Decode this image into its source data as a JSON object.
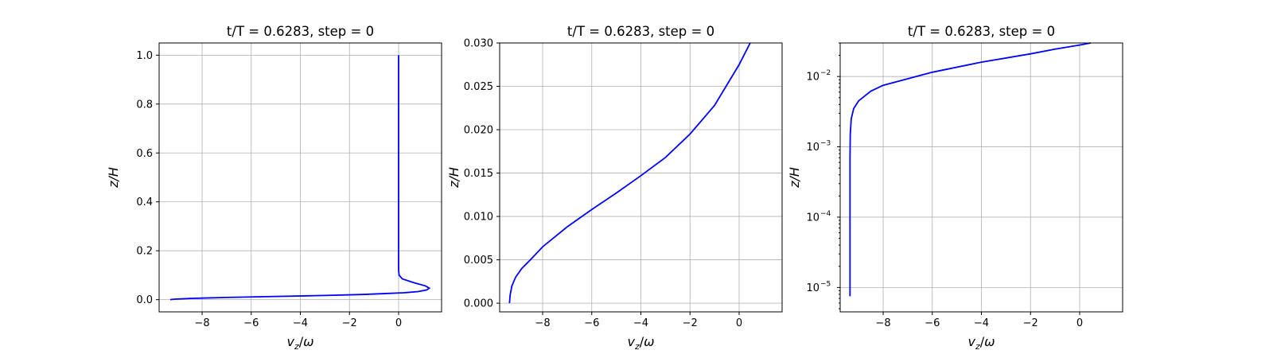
{
  "chart_data": [
    {
      "type": "line",
      "title": "t/T = 0.6283, step = 0",
      "xlabel": "v_z/ω",
      "ylabel": "z/H",
      "yscale": "linear",
      "xlim": [
        -9.75,
        1.75
      ],
      "ylim": [
        -0.05,
        1.05
      ],
      "xticks": [
        -8,
        -6,
        -4,
        -2,
        0
      ],
      "xtick_labels": [
        "−8",
        "−6",
        "−4",
        "−2",
        "0"
      ],
      "yticks": [
        0.0,
        0.2,
        0.4,
        0.6,
        0.8,
        1.0
      ],
      "ytick_labels": [
        "0.0",
        "0.2",
        "0.4",
        "0.6",
        "0.8",
        "1.0"
      ],
      "grid": true,
      "color": "#0000ff",
      "x": [
        -9.3,
        -9.1,
        -8.5,
        -7.0,
        -5.0,
        -3.0,
        -1.5,
        -0.5,
        0.2,
        0.8,
        1.15,
        1.25,
        1.1,
        0.6,
        0.15,
        0.02,
        0.0,
        0.0,
        0.0,
        0.0,
        0.0,
        0.0,
        0.0,
        0.0
      ],
      "y": [
        0.0,
        0.002,
        0.005,
        0.009,
        0.013,
        0.017,
        0.021,
        0.025,
        0.028,
        0.033,
        0.04,
        0.047,
        0.056,
        0.07,
        0.085,
        0.1,
        0.12,
        0.15,
        0.2,
        0.3,
        0.5,
        0.7,
        0.9,
        1.0
      ]
    },
    {
      "type": "line",
      "title": "t/T = 0.6283, step = 0",
      "xlabel": "v_z/ω",
      "ylabel": "z/H",
      "yscale": "linear",
      "xlim": [
        -9.75,
        1.75
      ],
      "ylim": [
        -0.001,
        0.03
      ],
      "xticks": [
        -8,
        -6,
        -4,
        -2,
        0
      ],
      "xtick_labels": [
        "−8",
        "−6",
        "−4",
        "−2",
        "0"
      ],
      "yticks": [
        0.0,
        0.005,
        0.01,
        0.015,
        0.02,
        0.025,
        0.03
      ],
      "ytick_labels": [
        "0.000",
        "0.005",
        "0.010",
        "0.015",
        "0.020",
        "0.025",
        "0.030"
      ],
      "grid": true,
      "color": "#0000ff",
      "x": [
        -9.35,
        -9.32,
        -9.25,
        -9.1,
        -8.85,
        -8.5,
        -8.0,
        -7.0,
        -6.0,
        -5.0,
        -4.0,
        -3.0,
        -2.0,
        -1.0,
        0.0,
        0.45
      ],
      "y": [
        0.0,
        0.001,
        0.002,
        0.003,
        0.004,
        0.005,
        0.0065,
        0.0088,
        0.0108,
        0.0127,
        0.0147,
        0.0168,
        0.0195,
        0.0228,
        0.0275,
        0.03
      ]
    },
    {
      "type": "line",
      "title": "t/T = 0.6283, step = 0",
      "xlabel": "v_z/ω",
      "ylabel": "z/H",
      "yscale": "log",
      "xlim": [
        -9.75,
        1.75
      ],
      "ylim": [
        4.5e-06,
        0.03
      ],
      "xticks": [
        -8,
        -6,
        -4,
        -2,
        0
      ],
      "xtick_labels": [
        "−8",
        "−6",
        "−4",
        "−2",
        "0"
      ],
      "yticks": [
        1e-05,
        0.0001,
        0.001,
        0.01
      ],
      "ytick_labels": [
        "10",
        "10",
        "10",
        "10"
      ],
      "ytick_exponents": [
        "−5",
        "−4",
        "−3",
        "−2"
      ],
      "grid": true,
      "color": "#0000ff",
      "x": [
        -9.35,
        -9.35,
        -9.35,
        -9.34,
        -9.3,
        -9.2,
        -9.0,
        -8.5,
        -8.0,
        -6.0,
        -4.0,
        -2.0,
        -1.0,
        0.0,
        0.45
      ],
      "y": [
        7.5e-06,
        0.0001,
        0.0007,
        0.0015,
        0.0025,
        0.0035,
        0.0045,
        0.0062,
        0.0075,
        0.0115,
        0.016,
        0.021,
        0.0245,
        0.028,
        0.03
      ]
    }
  ]
}
